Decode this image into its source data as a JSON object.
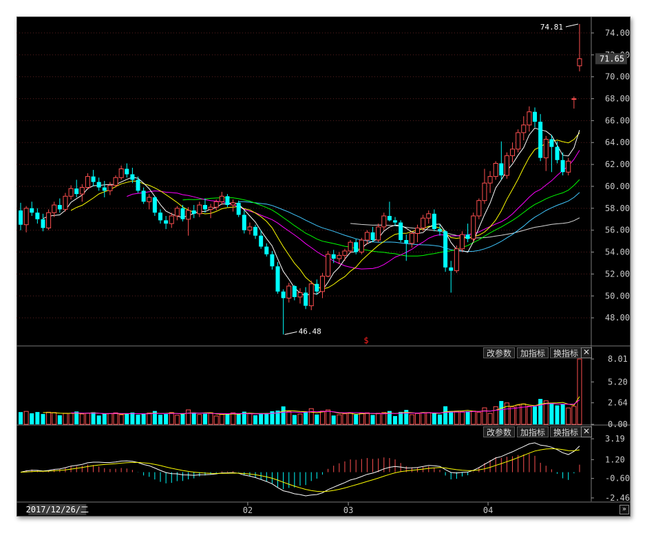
{
  "colors": {
    "up": "#ff5050",
    "down": "#00ffff",
    "ma5": "#ffffff",
    "ma10": "#ffff00",
    "ma20": "#ff00ff",
    "ma30": "#00ff00",
    "ma60": "#40c8ff",
    "ma120": "#d8d8d8"
  },
  "price_panel": {
    "y_ticks": [
      "74.00",
      "72.00",
      "70.00",
      "68.00",
      "66.00",
      "64.00",
      "62.00",
      "60.00",
      "58.00",
      "56.00",
      "54.00",
      "52.00",
      "50.00",
      "48.00"
    ],
    "last_price": "71.65",
    "high_label": "74.81",
    "low_label": "46.48",
    "marker": "$"
  },
  "volume_panel": {
    "y_ticks": [
      "8.01",
      "5.20",
      "2.64",
      "0.00"
    ],
    "buttons": [
      "改参数",
      "加指标",
      "换指标"
    ],
    "close_icon": "close-icon"
  },
  "macd_panel": {
    "y_ticks": [
      "3.19",
      "1.20",
      "-0.60",
      "-2.46"
    ],
    "buttons": [
      "改参数",
      "加指标",
      "换指标"
    ],
    "close_icon": "close-icon"
  },
  "x_axis": {
    "cursor_date": "2017/12/26/二",
    "labels": [
      "02",
      "03",
      "04"
    ]
  },
  "scroll_label": "»",
  "chart_data": [
    {
      "type": "candlestick",
      "ylim": [
        46,
        75
      ],
      "ticks": [
        74,
        72,
        70,
        68,
        66,
        64,
        62,
        60,
        58,
        56,
        54,
        52,
        50,
        48
      ],
      "candles": [
        [
          57.8,
          58.5,
          56.0,
          56.5
        ],
        [
          56.5,
          58.2,
          55.8,
          58.0
        ],
        [
          58.0,
          58.6,
          57.3,
          57.6
        ],
        [
          57.6,
          58.0,
          56.6,
          57.0
        ],
        [
          57.0,
          57.5,
          55.9,
          56.2
        ],
        [
          56.2,
          57.9,
          56.0,
          57.6
        ],
        [
          57.6,
          58.6,
          57.2,
          58.3
        ],
        [
          58.3,
          58.9,
          57.6,
          57.9
        ],
        [
          57.9,
          59.4,
          57.7,
          59.1
        ],
        [
          59.1,
          60.1,
          58.8,
          59.8
        ],
        [
          59.8,
          60.6,
          59.0,
          59.3
        ],
        [
          59.3,
          60.2,
          58.6,
          59.9
        ],
        [
          59.9,
          61.2,
          59.7,
          60.9
        ],
        [
          60.9,
          61.5,
          60.0,
          60.4
        ],
        [
          60.4,
          60.8,
          59.6,
          59.9
        ],
        [
          59.9,
          60.5,
          59.0,
          59.6
        ],
        [
          59.6,
          60.4,
          59.2,
          60.1
        ],
        [
          60.1,
          61.0,
          59.9,
          60.8
        ],
        [
          60.8,
          61.9,
          60.6,
          61.6
        ],
        [
          61.6,
          62.1,
          60.8,
          61.1
        ],
        [
          61.1,
          61.7,
          60.3,
          60.6
        ],
        [
          60.6,
          60.9,
          59.4,
          59.6
        ],
        [
          59.6,
          59.9,
          58.4,
          58.6
        ],
        [
          58.6,
          59.3,
          57.9,
          59.0
        ],
        [
          59.0,
          59.1,
          57.3,
          57.6
        ],
        [
          57.6,
          57.9,
          56.6,
          56.9
        ],
        [
          56.9,
          57.3,
          56.1,
          56.6
        ],
        [
          56.6,
          57.6,
          56.2,
          57.3
        ],
        [
          57.3,
          58.2,
          56.9,
          58.0
        ],
        [
          58.0,
          58.3,
          56.8,
          57.0
        ],
        [
          57.0,
          58.1,
          55.5,
          57.8
        ],
        [
          57.8,
          58.3,
          57.1,
          57.5
        ],
        [
          57.5,
          58.6,
          57.2,
          58.3
        ],
        [
          58.3,
          58.9,
          57.6,
          57.9
        ],
        [
          57.9,
          58.4,
          57.1,
          58.1
        ],
        [
          58.1,
          58.8,
          57.8,
          58.6
        ],
        [
          58.6,
          59.5,
          58.3,
          59.1
        ],
        [
          59.1,
          59.3,
          58.1,
          58.3
        ],
        [
          58.3,
          58.8,
          57.7,
          58.5
        ],
        [
          58.5,
          58.7,
          57.2,
          57.4
        ],
        [
          57.4,
          57.8,
          55.7,
          56.0
        ],
        [
          56.0,
          56.7,
          55.6,
          56.3
        ],
        [
          56.3,
          56.5,
          55.2,
          55.5
        ],
        [
          55.5,
          56.0,
          54.3,
          54.5
        ],
        [
          54.5,
          54.8,
          53.6,
          53.8
        ],
        [
          53.8,
          54.1,
          52.4,
          52.7
        ],
        [
          52.7,
          53.1,
          50.2,
          50.4
        ],
        [
          50.4,
          50.6,
          46.48,
          49.8
        ],
        [
          49.8,
          51.2,
          49.4,
          50.9
        ],
        [
          50.9,
          51.0,
          49.6,
          49.9
        ],
        [
          49.9,
          50.7,
          49.3,
          50.3
        ],
        [
          50.3,
          50.8,
          48.8,
          49.1
        ],
        [
          49.1,
          51.4,
          48.7,
          51.1
        ],
        [
          51.1,
          51.5,
          50.1,
          50.4
        ],
        [
          50.4,
          52.1,
          49.8,
          51.8
        ],
        [
          51.8,
          54.1,
          51.7,
          53.8
        ],
        [
          53.8,
          54.2,
          53.0,
          53.4
        ],
        [
          53.4,
          54.0,
          52.9,
          53.7
        ],
        [
          53.7,
          54.3,
          53.2,
          54.1
        ],
        [
          54.1,
          55.1,
          53.9,
          54.9
        ],
        [
          54.9,
          55.2,
          53.8,
          54.0
        ],
        [
          54.0,
          55.3,
          53.8,
          55.1
        ],
        [
          55.1,
          56.0,
          54.7,
          55.8
        ],
        [
          55.8,
          56.3,
          54.9,
          55.1
        ],
        [
          55.1,
          56.6,
          54.9,
          56.3
        ],
        [
          56.3,
          57.6,
          56.0,
          57.3
        ],
        [
          57.3,
          58.6,
          56.8,
          56.9
        ],
        [
          56.9,
          57.2,
          56.4,
          56.7
        ],
        [
          56.7,
          56.9,
          54.9,
          55.1
        ],
        [
          55.1,
          55.6,
          53.2,
          54.8
        ],
        [
          54.8,
          55.9,
          54.4,
          55.7
        ],
        [
          55.7,
          56.5,
          54.9,
          56.2
        ],
        [
          56.2,
          57.4,
          55.9,
          57.1
        ],
        [
          57.1,
          57.8,
          56.6,
          57.5
        ],
        [
          57.5,
          57.9,
          55.9,
          56.1
        ],
        [
          56.1,
          56.5,
          55.5,
          55.9
        ],
        [
          55.9,
          56.0,
          52.2,
          52.6
        ],
        [
          52.6,
          53.2,
          50.3,
          52.3
        ],
        [
          52.3,
          54.6,
          52.1,
          54.3
        ],
        [
          54.3,
          55.9,
          54.0,
          55.6
        ],
        [
          55.6,
          56.6,
          54.9,
          55.2
        ],
        [
          55.2,
          57.6,
          54.9,
          57.3
        ],
        [
          57.3,
          58.9,
          57.0,
          58.7
        ],
        [
          58.7,
          61.6,
          58.4,
          60.3
        ],
        [
          60.3,
          61.4,
          59.4,
          60.9
        ],
        [
          60.9,
          62.3,
          60.6,
          62.1
        ],
        [
          62.1,
          64.1,
          60.6,
          61.0
        ],
        [
          61.0,
          63.1,
          60.7,
          62.8
        ],
        [
          62.8,
          64.0,
          62.2,
          63.4
        ],
        [
          63.4,
          65.2,
          63.1,
          64.9
        ],
        [
          64.9,
          66.4,
          64.2,
          65.6
        ],
        [
          65.6,
          67.3,
          65.0,
          66.8
        ],
        [
          66.8,
          67.2,
          65.4,
          65.9
        ],
        [
          65.9,
          66.6,
          62.3,
          62.6
        ],
        [
          62.6,
          64.6,
          61.4,
          64.3
        ],
        [
          64.3,
          64.7,
          61.3,
          63.6
        ],
        [
          63.6,
          64.1,
          62.1,
          62.4
        ],
        [
          62.4,
          63.1,
          61.0,
          61.3
        ],
        [
          61.3,
          62.6,
          61.0,
          62.3
        ],
        [
          68.0,
          68.2,
          67.1,
          68.0
        ],
        [
          71.0,
          74.81,
          70.5,
          71.65
        ]
      ],
      "volume_ylim": [
        0,
        8.01
      ],
      "volume_ticks": [
        8.01,
        5.2,
        2.64,
        0.0
      ],
      "macd_ylim": [
        -2.46,
        3.19
      ],
      "macd_ticks": [
        3.19,
        1.2,
        -0.6,
        -2.46
      ]
    }
  ]
}
